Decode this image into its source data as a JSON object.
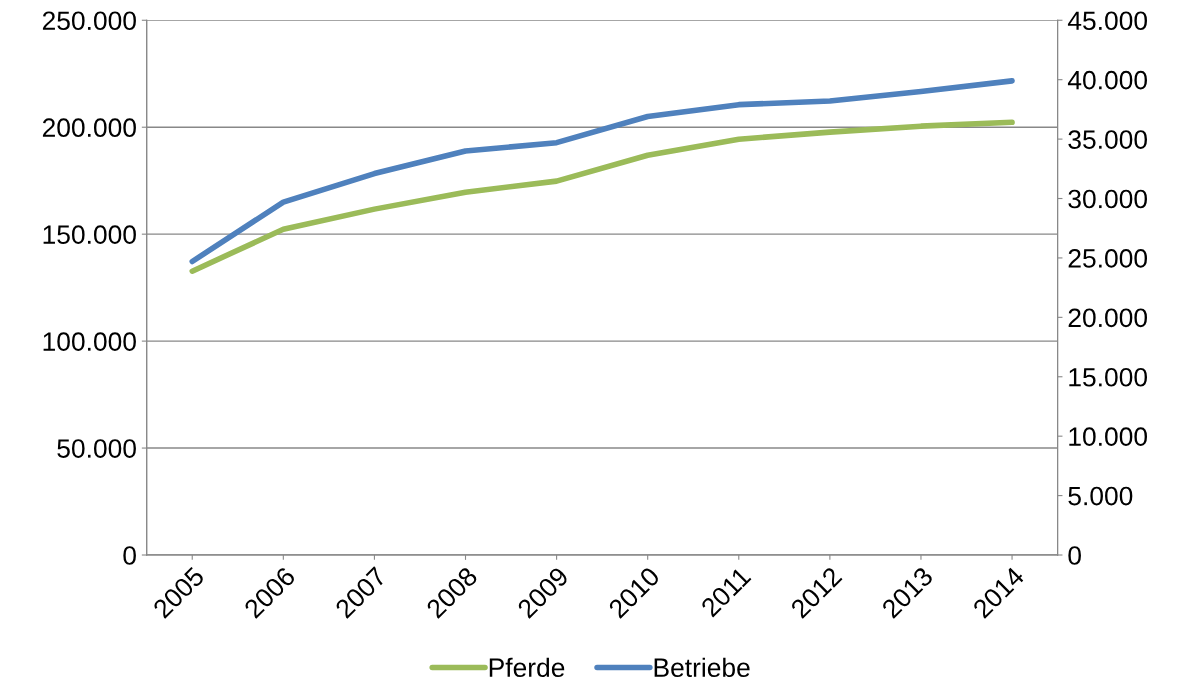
{
  "chart_data": {
    "type": "line",
    "categories": [
      "2005",
      "2006",
      "2007",
      "2008",
      "2009",
      "2010",
      "2011",
      "2012",
      "2013",
      "2014"
    ],
    "series": [
      {
        "name": "Pferde",
        "color": "#9bbb59",
        "values": [
          132700,
          152300,
          161700,
          169600,
          174800,
          186900,
          194400,
          197700,
          200500,
          202300
        ]
      },
      {
        "name": "Betriebe",
        "color": "#4f81bd",
        "axis": "y2",
        "values": [
          24700,
          29700,
          32100,
          34000,
          34700,
          36900,
          37900,
          38200,
          39000,
          39900
        ]
      }
    ],
    "ylim": [
      0,
      250000
    ],
    "yticks": [
      {
        "value": 0,
        "label": "0"
      },
      {
        "value": 50000,
        "label": "50.000"
      },
      {
        "value": 100000,
        "label": "100.000"
      },
      {
        "value": 150000,
        "label": "150.000"
      },
      {
        "value": 200000,
        "label": "200.000"
      },
      {
        "value": 250000,
        "label": "250.000"
      }
    ],
    "y2lim": [
      0,
      45000
    ],
    "y2ticks": [
      {
        "value": 0,
        "label": "0"
      },
      {
        "value": 5000,
        "label": "5.000"
      },
      {
        "value": 10000,
        "label": "10.000"
      },
      {
        "value": 15000,
        "label": "15.000"
      },
      {
        "value": 20000,
        "label": "20.000"
      },
      {
        "value": 25000,
        "label": "25.000"
      },
      {
        "value": 30000,
        "label": "30.000"
      },
      {
        "value": 35000,
        "label": "35.000"
      },
      {
        "value": 40000,
        "label": "40.000"
      },
      {
        "value": 45000,
        "label": "45.000"
      }
    ],
    "grid": "y",
    "legend": "bottom",
    "marker": "none",
    "line_style": "solid"
  }
}
